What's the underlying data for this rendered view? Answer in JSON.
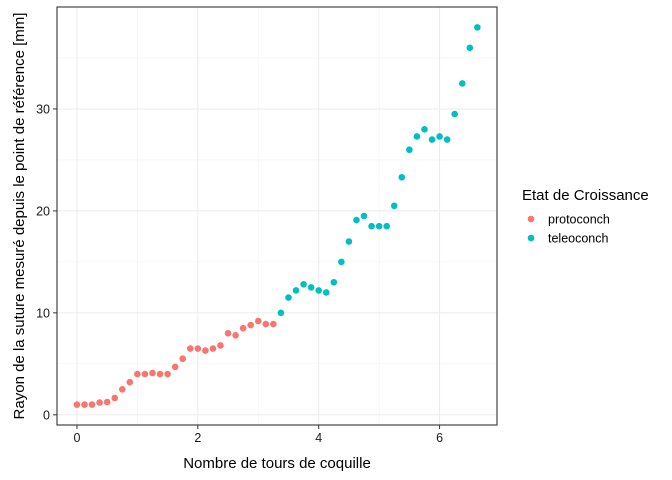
{
  "chart_data": {
    "type": "scatter",
    "xlabel": "Nombre de tours de coquille",
    "ylabel": "Rayon de la suture mesuré depuis le point de référence  [mm]",
    "xlim": [
      -0.33,
      6.95
    ],
    "ylim": [
      -1.0,
      40.0
    ],
    "x_ticks": [
      0,
      2,
      4,
      6
    ],
    "y_ticks": [
      0,
      10,
      20,
      30
    ],
    "grid": true,
    "legend": {
      "title": "Etat de Croissance",
      "placement": "right",
      "entries": [
        {
          "name": "protoconch",
          "color": "#F8766D"
        },
        {
          "name": "teleoconch",
          "color": "#00BFC4"
        }
      ]
    },
    "series": [
      {
        "name": "protoconch",
        "color": "#F8766D",
        "points": [
          [
            0.0,
            1.0
          ],
          [
            0.125,
            1.0
          ],
          [
            0.25,
            1.0
          ],
          [
            0.375,
            1.2
          ],
          [
            0.5,
            1.25
          ],
          [
            0.625,
            1.65
          ],
          [
            0.75,
            2.5
          ],
          [
            0.875,
            3.2
          ],
          [
            1.0,
            4.0
          ],
          [
            1.125,
            4.0
          ],
          [
            1.25,
            4.1
          ],
          [
            1.375,
            4.0
          ],
          [
            1.5,
            4.0
          ],
          [
            1.625,
            4.7
          ],
          [
            1.75,
            5.5
          ],
          [
            1.875,
            6.5
          ],
          [
            2.0,
            6.5
          ],
          [
            2.125,
            6.3
          ],
          [
            2.25,
            6.5
          ],
          [
            2.375,
            6.8
          ],
          [
            2.5,
            8.0
          ],
          [
            2.625,
            7.8
          ],
          [
            2.75,
            8.5
          ],
          [
            2.875,
            8.8
          ],
          [
            3.0,
            9.2
          ],
          [
            3.125,
            8.9
          ],
          [
            3.25,
            8.9
          ]
        ]
      },
      {
        "name": "teleoconch",
        "color": "#00BFC4",
        "points": [
          [
            3.375,
            10.0
          ],
          [
            3.5,
            11.5
          ],
          [
            3.625,
            12.2
          ],
          [
            3.75,
            12.8
          ],
          [
            3.875,
            12.5
          ],
          [
            4.0,
            12.2
          ],
          [
            4.125,
            12.0
          ],
          [
            4.25,
            13.0
          ],
          [
            4.375,
            15.0
          ],
          [
            4.5,
            17.0
          ],
          [
            4.625,
            19.1
          ],
          [
            4.75,
            19.5
          ],
          [
            4.875,
            18.5
          ],
          [
            5.0,
            18.5
          ],
          [
            5.125,
            18.5
          ],
          [
            5.25,
            20.5
          ],
          [
            5.375,
            23.3
          ],
          [
            5.5,
            26.0
          ],
          [
            5.625,
            27.3
          ],
          [
            5.75,
            28.0
          ],
          [
            5.875,
            27.0
          ],
          [
            6.0,
            27.3
          ],
          [
            6.125,
            27.0
          ],
          [
            6.25,
            29.5
          ],
          [
            6.375,
            32.5
          ],
          [
            6.5,
            36.0
          ],
          [
            6.625,
            38.0
          ]
        ]
      }
    ]
  }
}
